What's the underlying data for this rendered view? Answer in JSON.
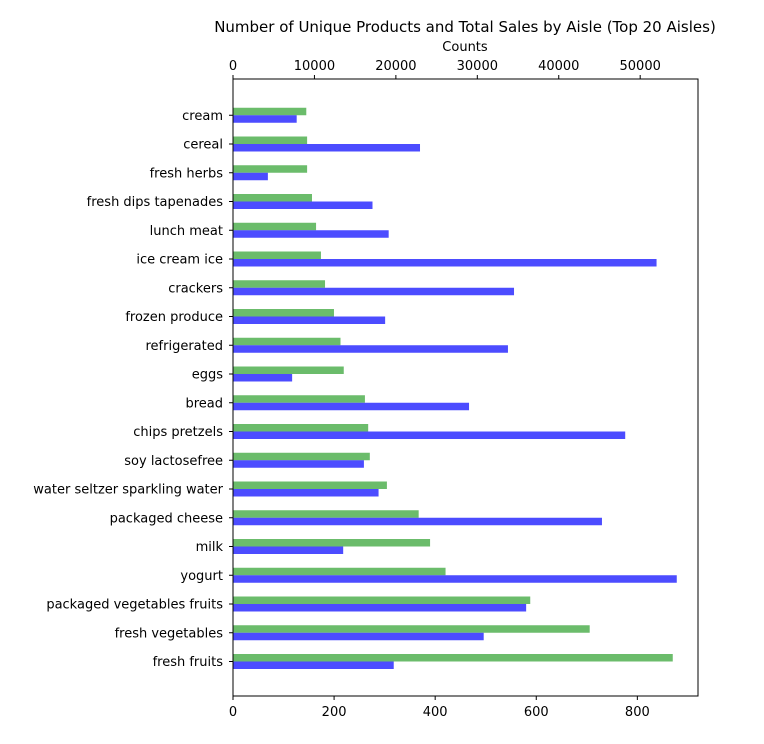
{
  "chart_data": {
    "type": "bar",
    "orientation": "horizontal",
    "title": "Number of Unique Products and Total Sales by Aisle (Top 20 Aisles)",
    "top_axis_label": "Counts",
    "categories": [
      "fresh fruits",
      "fresh vegetables",
      "packaged vegetables fruits",
      "yogurt",
      "milk",
      "packaged cheese",
      "water seltzer sparkling water",
      "soy lactosefree",
      "chips pretzels",
      "bread",
      "eggs",
      "refrigerated",
      "frozen produce",
      "crackers",
      "ice cream ice",
      "lunch meat",
      "fresh dips tapenades",
      "fresh herbs",
      "cereal",
      "cream"
    ],
    "series": [
      {
        "axis": "top",
        "color": "#2ca02c",
        "values": [
          54000,
          43800,
          36500,
          26100,
          24200,
          22800,
          18900,
          16800,
          16600,
          16200,
          13600,
          13200,
          12400,
          11300,
          10800,
          10200,
          9700,
          9100,
          9100,
          9000
        ]
      },
      {
        "axis": "bottom",
        "color": "#0000ff",
        "values": [
          318,
          496,
          580,
          878,
          218,
          730,
          288,
          259,
          776,
          467,
          117,
          544,
          301,
          556,
          838,
          308,
          276,
          69,
          370,
          126
        ]
      }
    ],
    "x_top_ticks": [
      "0",
      "10000",
      "20000",
      "30000",
      "40000",
      "50000"
    ],
    "x_bottom_ticks": [
      "0",
      "200",
      "400",
      "600",
      "800"
    ],
    "x_top_lim": [
      0,
      57100
    ],
    "x_bottom_lim": [
      0,
      920
    ],
    "bar_alpha": 0.7,
    "grid": false
  }
}
